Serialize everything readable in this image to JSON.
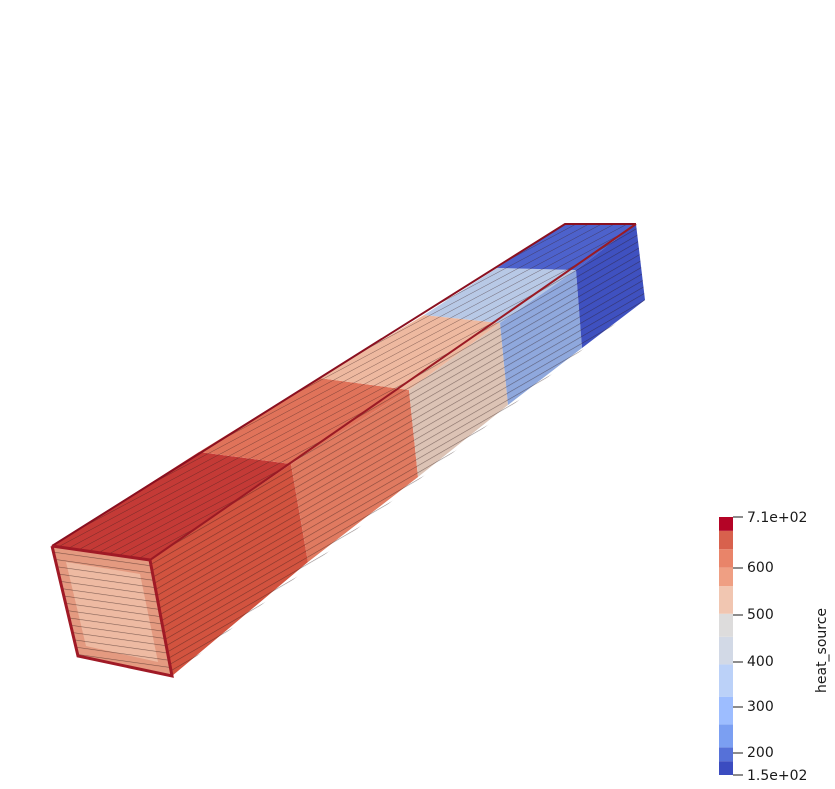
{
  "scene": {
    "description_free": true,
    "object": "extruded-bar-mesh",
    "segments": [
      {
        "color": "#b40426"
      },
      {
        "color": "#e0654f"
      },
      {
        "color": "#e97a5f"
      },
      {
        "color": "#f2cbb7"
      },
      {
        "color": "#9fbfff"
      },
      {
        "color": "#6687ed"
      },
      {
        "color": "#3b4cc0"
      }
    ],
    "mesh_line_color": "#3a1f1f"
  },
  "colorbar": {
    "title": "heat_source",
    "min_label": "1.5e+02",
    "max_label": "7.1e+02",
    "ticks": [
      "600",
      "500",
      "400",
      "300",
      "200"
    ],
    "range": [
      150,
      710
    ],
    "bands": [
      {
        "from": 150,
        "to": 180,
        "color": "#3b4cc0"
      },
      {
        "from": 180,
        "to": 210,
        "color": "#5671d8"
      },
      {
        "from": 210,
        "to": 260,
        "color": "#7b9ff2"
      },
      {
        "from": 260,
        "to": 320,
        "color": "#9dbdff"
      },
      {
        "from": 320,
        "to": 390,
        "color": "#bbd1f8"
      },
      {
        "from": 390,
        "to": 450,
        "color": "#d2d9e6"
      },
      {
        "from": 450,
        "to": 500,
        "color": "#dddcdc"
      },
      {
        "from": 500,
        "to": 560,
        "color": "#f1c6b1"
      },
      {
        "from": 560,
        "to": 600,
        "color": "#ef9f83"
      },
      {
        "from": 600,
        "to": 640,
        "color": "#e98469"
      },
      {
        "from": 640,
        "to": 680,
        "color": "#d8614d"
      },
      {
        "from": 680,
        "to": 710,
        "color": "#b40426"
      }
    ]
  }
}
